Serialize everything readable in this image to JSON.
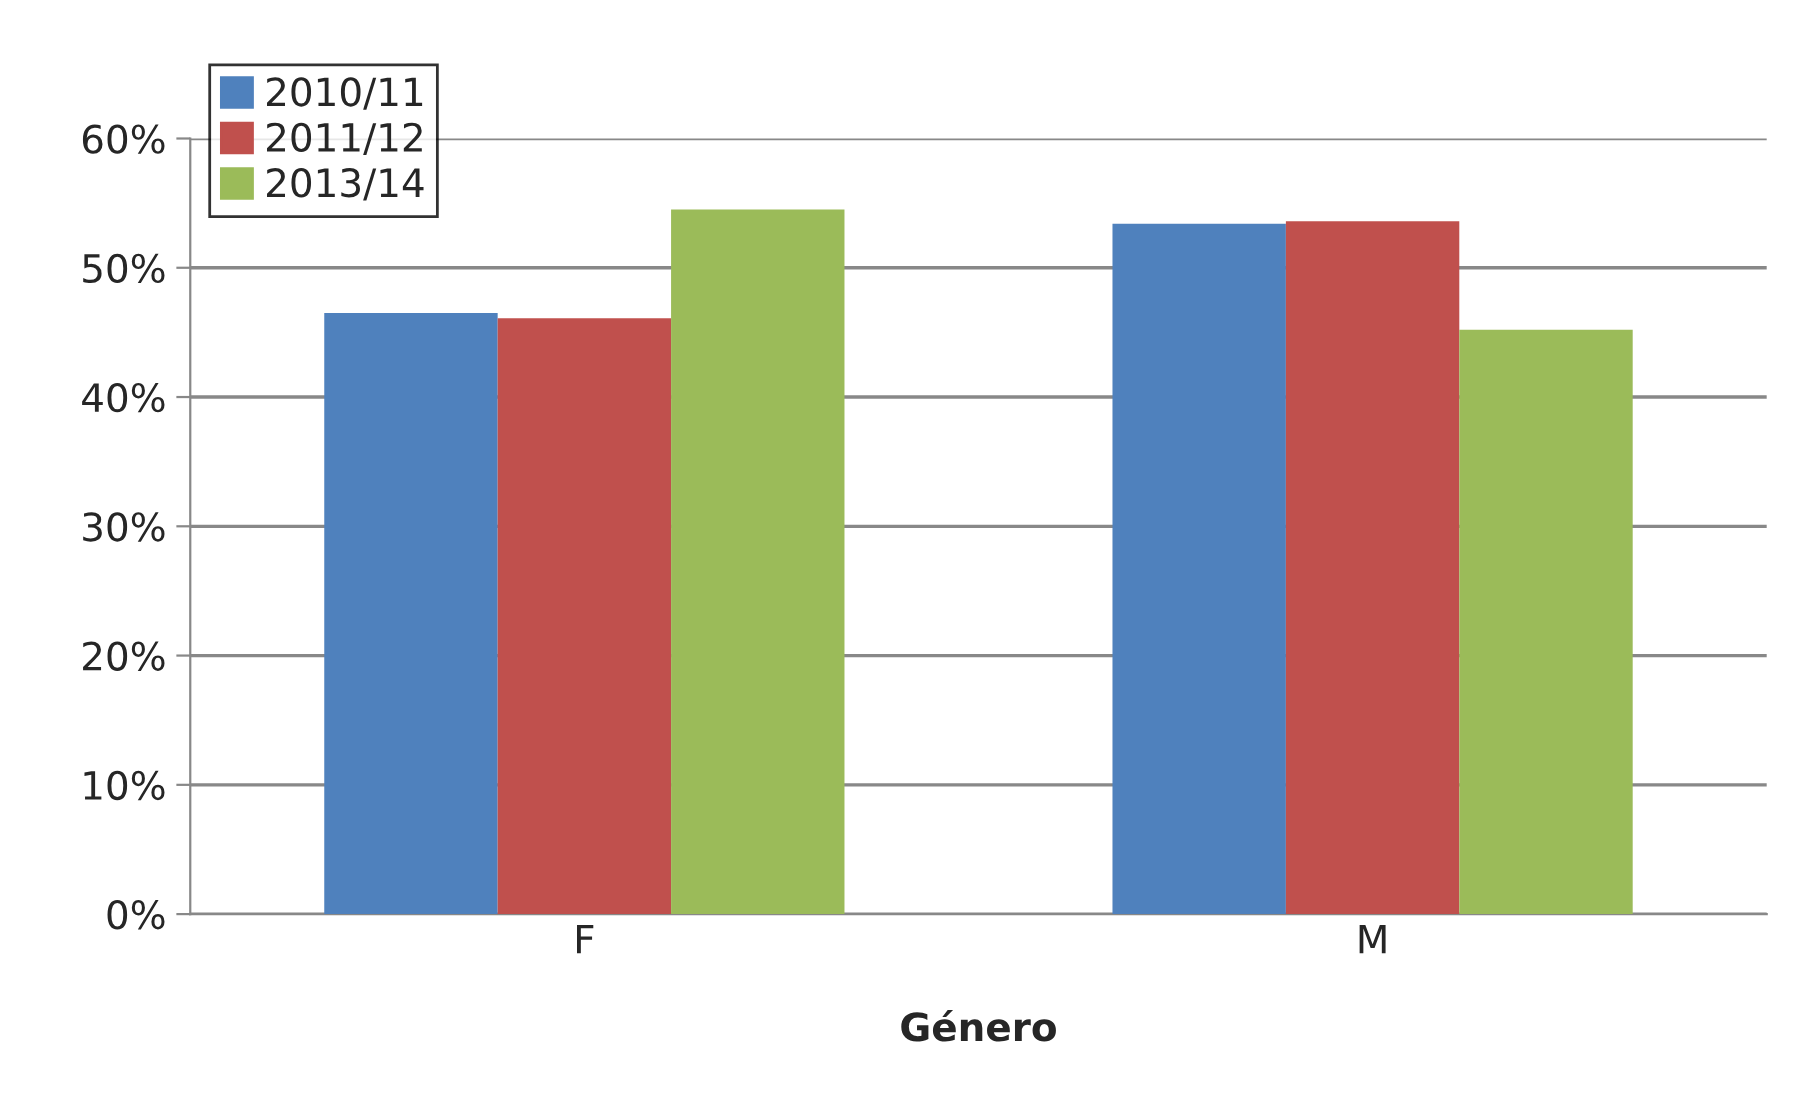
{
  "chart_data": {
    "type": "bar",
    "xlabel": "Género",
    "categories": [
      "F",
      "M"
    ],
    "series": [
      {
        "name": "2010/11",
        "color": "#4f81bd",
        "values": [
          46.5,
          53.4
        ]
      },
      {
        "name": "2011/12",
        "color": "#c0504d",
        "values": [
          46.1,
          53.6
        ]
      },
      {
        "name": "2013/14",
        "color": "#9bbb59",
        "values": [
          54.5,
          45.2
        ]
      }
    ],
    "ylim": [
      0,
      60
    ],
    "yticks": [
      {
        "value": 0,
        "label": "0%"
      },
      {
        "value": 10,
        "label": "10%"
      },
      {
        "value": 20,
        "label": "20%"
      },
      {
        "value": 30,
        "label": "30%"
      },
      {
        "value": 40,
        "label": "40%"
      },
      {
        "value": 50,
        "label": "50%"
      },
      {
        "value": 60,
        "label": "60%"
      }
    ],
    "grid": "y",
    "legend": "top left"
  }
}
